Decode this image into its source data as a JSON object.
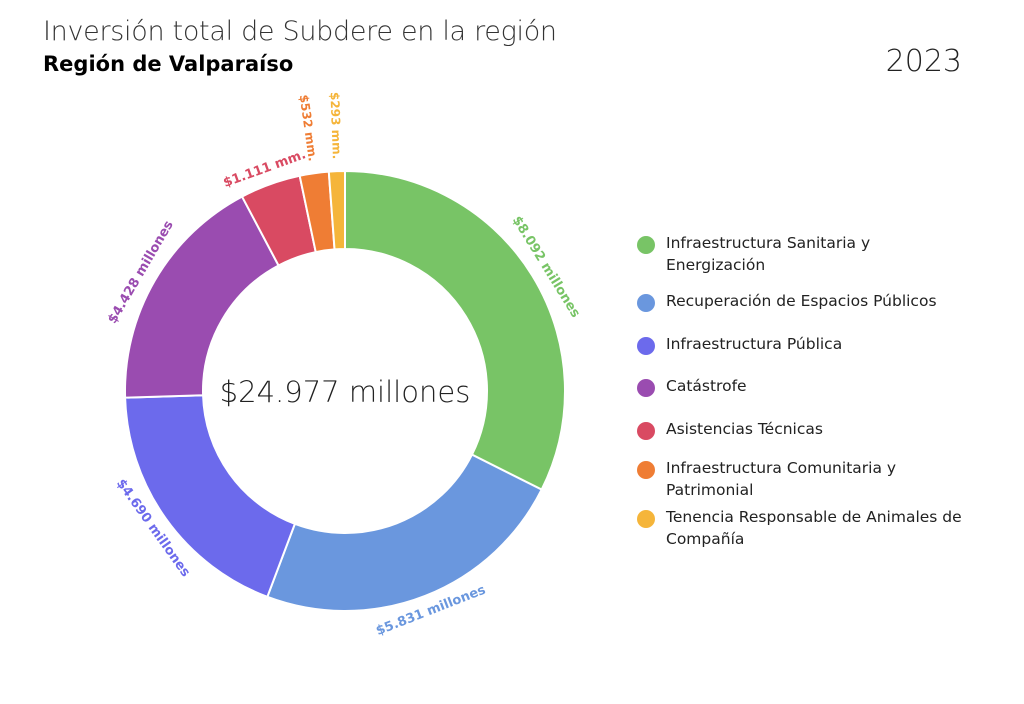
{
  "header": {
    "title": "Inversión total de Subdere en la región",
    "subtitle": "Región de Valparaíso",
    "year": "2023"
  },
  "center_label": "$24.977 millones",
  "chart_data": {
    "type": "pie",
    "variant": "donut",
    "title": "Inversión total de Subdere en la región",
    "subtitle": "Región de Valparaíso",
    "total_label": "$24.977 millones",
    "legend_position": "right",
    "series": [
      {
        "name": "Infraestructura Sanitaria y Energización",
        "value": 8092,
        "label": "$8.092 millones",
        "color": "#78c466"
      },
      {
        "name": "Recuperación de Espacios Públicos",
        "value": 5831,
        "label": "$5.831 millones",
        "color": "#6a97de"
      },
      {
        "name": "Infraestructura Pública",
        "value": 4690,
        "label": "$4.690 millones",
        "color": "#6c6aec"
      },
      {
        "name": "Catástrofe",
        "value": 4428,
        "label": "$4.428 millones",
        "color": "#9a4cb0"
      },
      {
        "name": "Asistencias Técnicas",
        "value": 1111,
        "label": "$1.111 mm.",
        "color": "#d94a62"
      },
      {
        "name": "Infraestructura Comunitaria y Patrimonial",
        "value": 532,
        "label": "$532 mm.",
        "color": "#ef7d34"
      },
      {
        "name": "Tenencia Responsable de Animales de Compañía",
        "value": 293,
        "label": "$293 mm.",
        "color": "#f5b53a"
      }
    ]
  }
}
